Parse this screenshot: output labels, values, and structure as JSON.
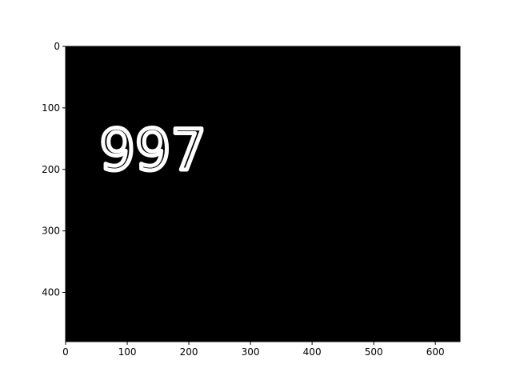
{
  "chart_data": {
    "type": "image",
    "xlim": [
      0,
      640
    ],
    "ylim": [
      480,
      0
    ],
    "x_ticks": [
      0,
      100,
      200,
      300,
      400,
      500,
      600
    ],
    "y_ticks": [
      0,
      100,
      200,
      300,
      400
    ],
    "x_tick_labels": [
      "0",
      "100",
      "200",
      "300",
      "400",
      "500",
      "600"
    ],
    "y_tick_labels": [
      "0",
      "100",
      "200",
      "300",
      "400"
    ],
    "background_color": "#000000",
    "text_color": "#ffffff",
    "image_text": {
      "text": "997",
      "x": 55,
      "y": 200
    },
    "grid": false,
    "legend": "none"
  }
}
